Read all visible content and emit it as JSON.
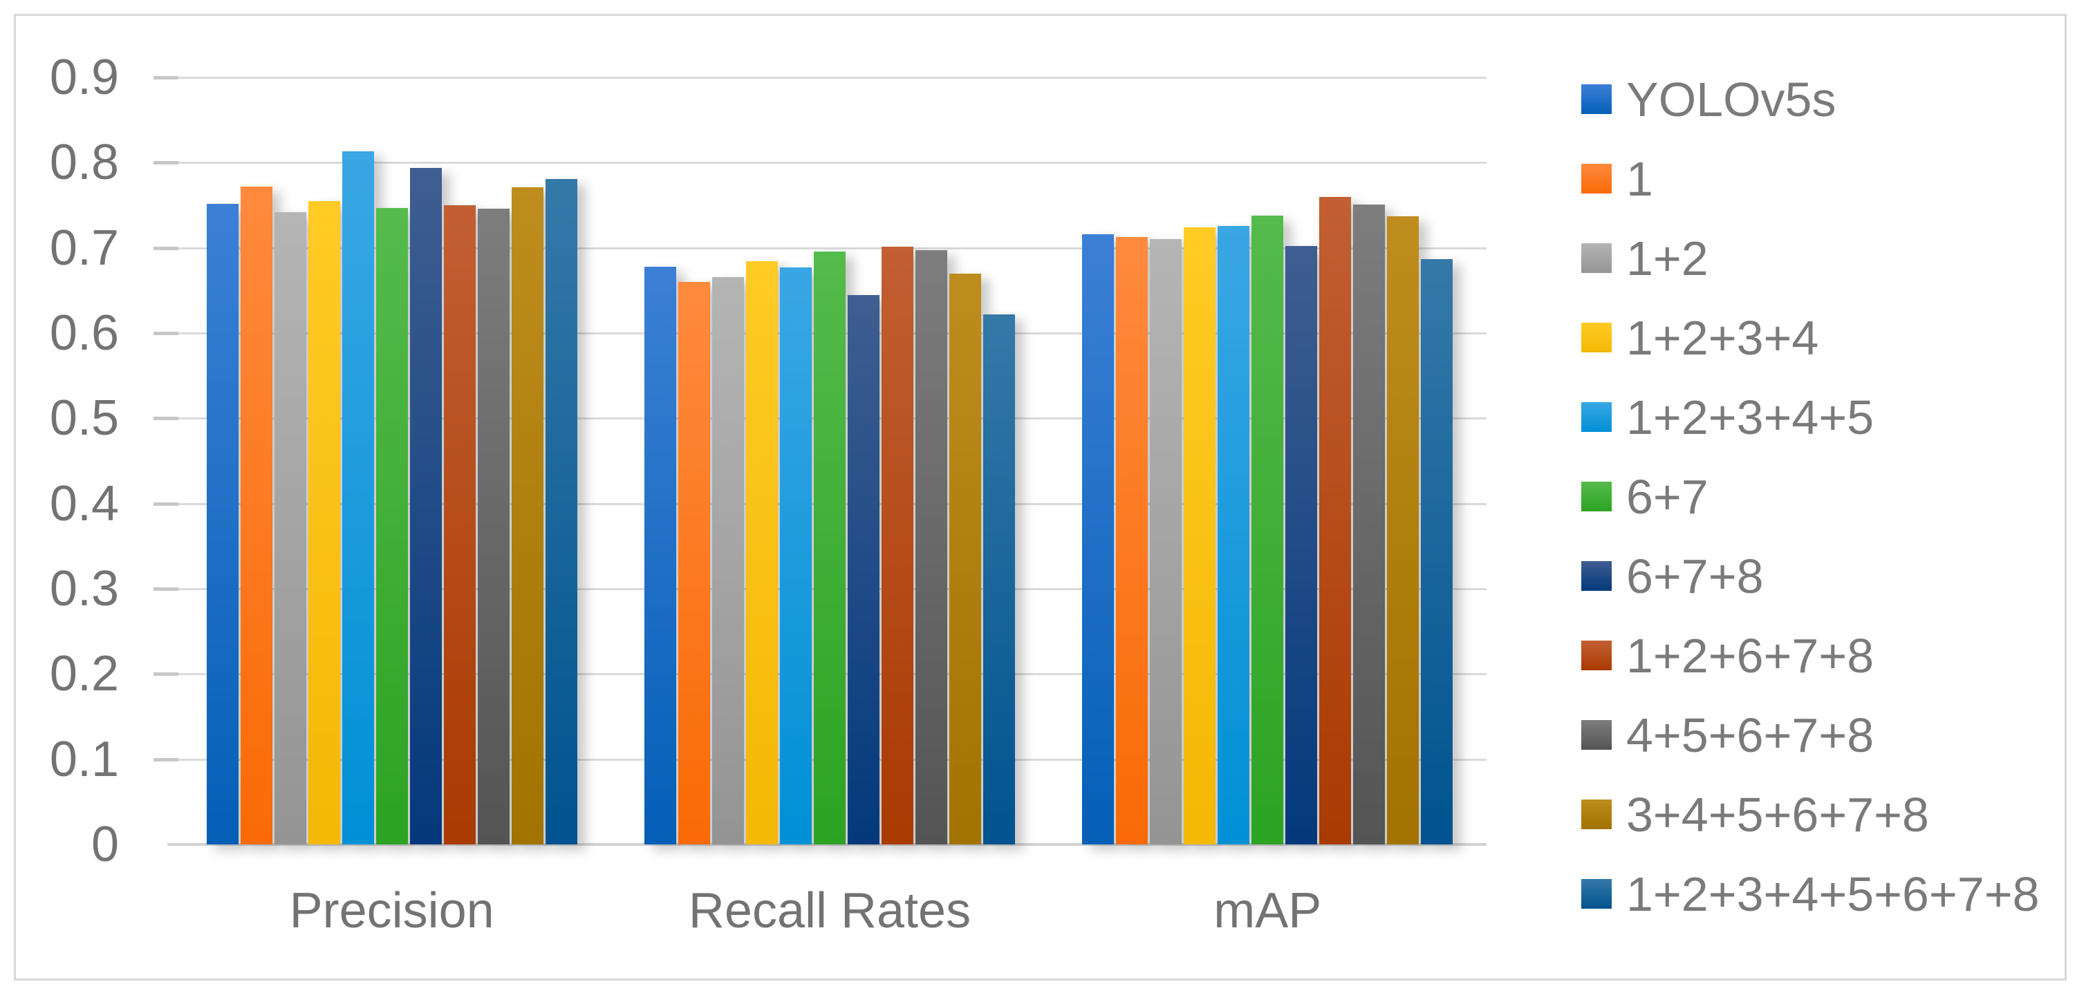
{
  "chart_data": {
    "type": "bar",
    "title": "",
    "categories": [
      "Precision",
      "Recall Rates",
      "mAP"
    ],
    "series": [
      {
        "name": "YOLOv5s",
        "values": [
          0.752,
          0.678,
          0.716
        ],
        "color_top": "#3c80d6",
        "color_bottom": "#045fb6"
      },
      {
        "name": "1",
        "values": [
          0.772,
          0.66,
          0.713
        ],
        "color_top": "#ff8a3e",
        "color_bottom": "#f96a05"
      },
      {
        "name": "1+2",
        "values": [
          0.742,
          0.666,
          0.71
        ],
        "color_top": "#b5b5b5",
        "color_bottom": "#949494"
      },
      {
        "name": "1+2+3+4",
        "values": [
          0.755,
          0.684,
          0.724
        ],
        "color_top": "#ffcb25",
        "color_bottom": "#f4b805"
      },
      {
        "name": "1+2+3+4+5",
        "values": [
          0.813,
          0.677,
          0.726
        ],
        "color_top": "#3aa7e4",
        "color_bottom": "#0090d5"
      },
      {
        "name": "6+7",
        "values": [
          0.747,
          0.696,
          0.738
        ],
        "color_top": "#55bb4c",
        "color_bottom": "#2ca323"
      },
      {
        "name": "6+7+8",
        "values": [
          0.794,
          0.645,
          0.702
        ],
        "color_top": "#3f5e91",
        "color_bottom": "#03397c"
      },
      {
        "name": "1+2+6+7+8",
        "values": [
          0.75,
          0.701,
          0.76
        ],
        "color_top": "#c25f33",
        "color_bottom": "#a93a02"
      },
      {
        "name": "4+5+6+7+8",
        "values": [
          0.746,
          0.697,
          0.751
        ],
        "color_top": "#7d7d7d",
        "color_bottom": "#545454"
      },
      {
        "name": "3+4+5+6+7+8",
        "values": [
          0.771,
          0.67,
          0.737
        ],
        "color_top": "#be8d1e",
        "color_bottom": "#a27300"
      },
      {
        "name": "1+2+3+4+5+6+7+8",
        "values": [
          0.781,
          0.622,
          0.687
        ],
        "color_top": "#3579a8",
        "color_bottom": "#00538f"
      }
    ],
    "ylim": [
      0,
      0.9
    ],
    "yticks": [
      "0.9",
      "0.8",
      "0.7",
      "0.6",
      "0.5",
      "0.4",
      "0.3",
      "0.2",
      "0.1",
      "0"
    ],
    "xlabel": "",
    "ylabel": "",
    "grid": "horizontal",
    "legend_position": "right"
  },
  "style": {
    "background": "#ffffff",
    "border_color": "#d9d9d9",
    "gridline_color": "#dadada",
    "axis_text_color": "#737373",
    "legend_text_color": "#7a7a7a"
  }
}
